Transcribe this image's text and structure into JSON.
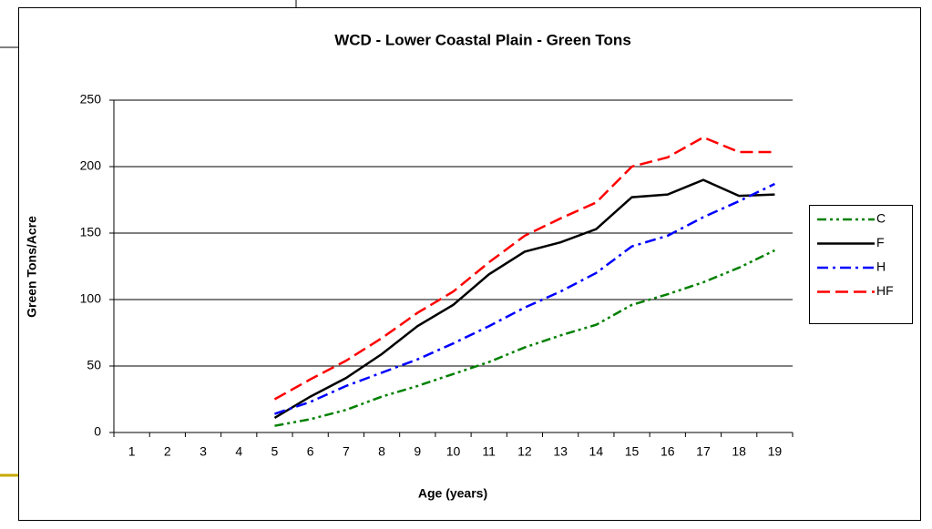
{
  "chart_data": {
    "type": "line",
    "title": "WCD - Lower Coastal Plain - Green Tons",
    "x_label": "Age (years)",
    "y_label": "Green Tons/Acre",
    "categories": [
      "1",
      "2",
      "3",
      "4",
      "5",
      "6",
      "7",
      "8",
      "9",
      "10",
      "11",
      "12",
      "13",
      "14",
      "15",
      "16",
      "17",
      "18",
      "19"
    ],
    "series": [
      {
        "name": "C",
        "color": "#008000",
        "line_style": "dash-dot-dot",
        "values": [
          null,
          null,
          null,
          null,
          5,
          10,
          17,
          27,
          35,
          44,
          53,
          64,
          73,
          81,
          96,
          104,
          113,
          124,
          137
        ]
      },
      {
        "name": "F",
        "color": "#000000",
        "line_style": "solid",
        "values": [
          null,
          null,
          null,
          null,
          11,
          27,
          41,
          59,
          80,
          96,
          119,
          136,
          143,
          153,
          177,
          179,
          190,
          178,
          179
        ]
      },
      {
        "name": "H",
        "color": "#0000ff",
        "line_style": "dash-dot",
        "values": [
          null,
          null,
          null,
          null,
          14,
          23,
          35,
          45,
          55,
          67,
          80,
          94,
          106,
          120,
          140,
          148,
          162,
          174,
          187
        ]
      },
      {
        "name": "HF",
        "color": "#ff0000",
        "line_style": "dash",
        "values": [
          null,
          null,
          null,
          null,
          25,
          40,
          54,
          71,
          90,
          106,
          128,
          148,
          161,
          173,
          200,
          207,
          222,
          211,
          211
        ]
      }
    ],
    "ylim": [
      0,
      250
    ],
    "yticks": [
      0,
      50,
      100,
      150,
      200,
      250
    ],
    "grid": true,
    "legend": "right"
  }
}
